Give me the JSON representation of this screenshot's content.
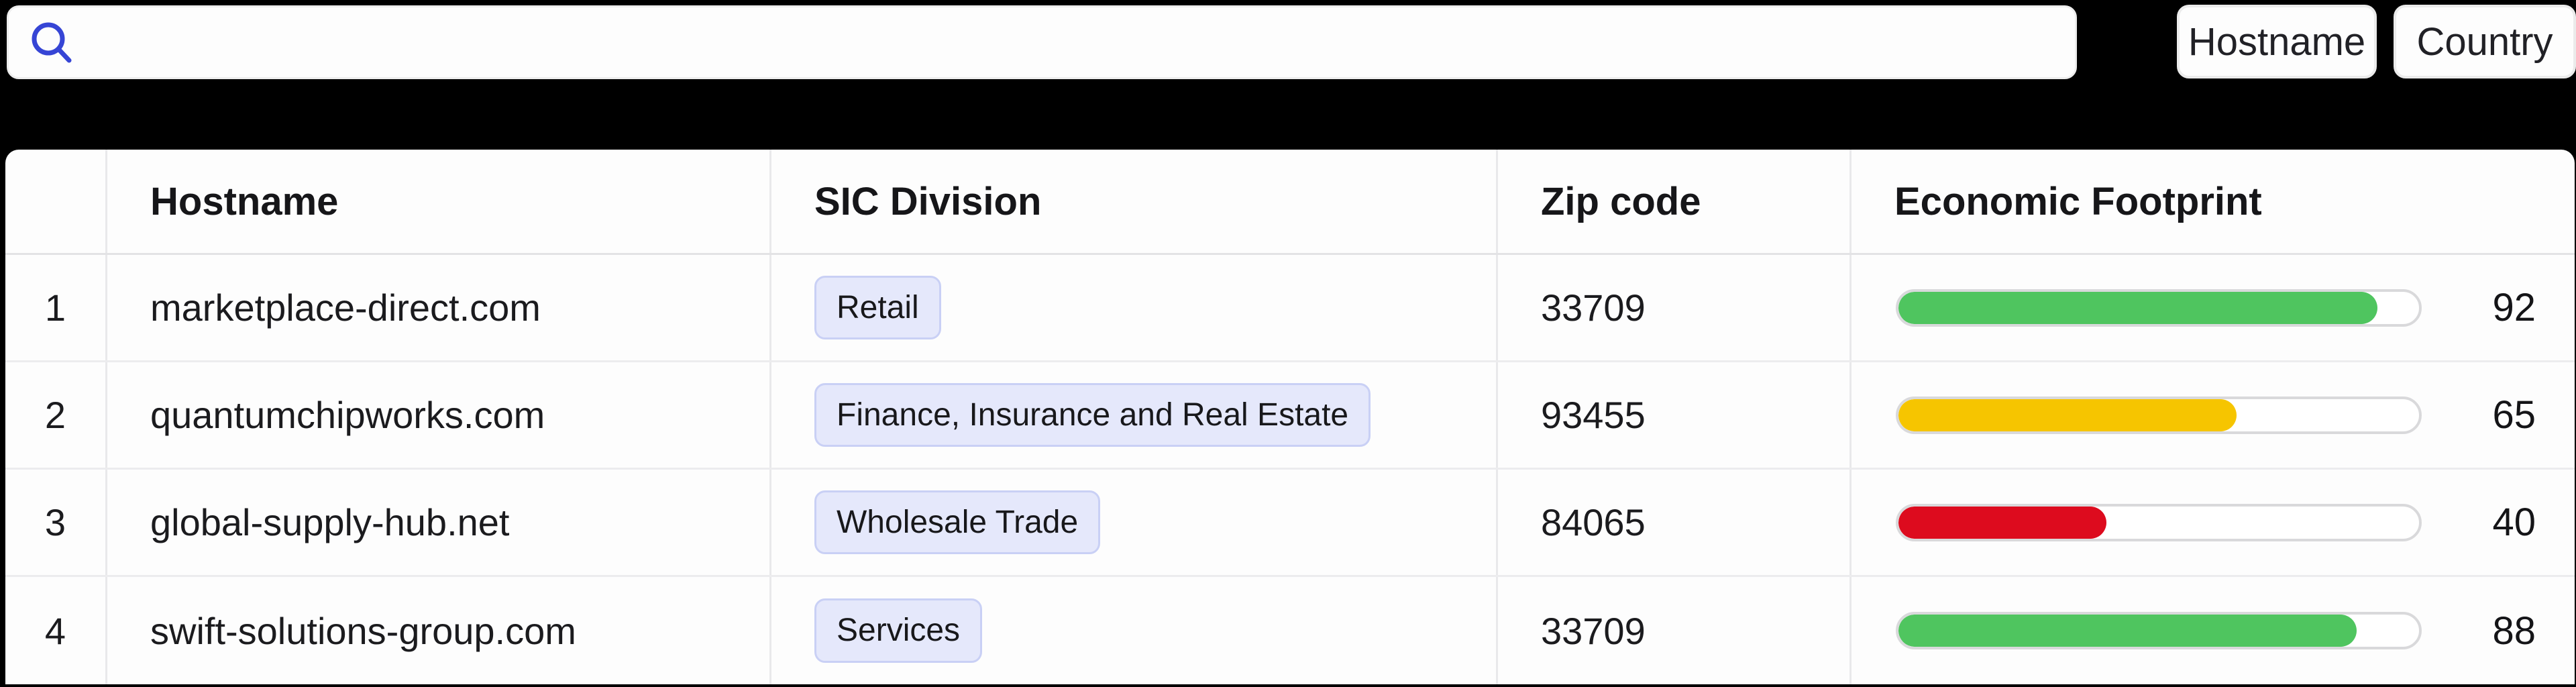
{
  "page": {
    "background": "#000000"
  },
  "toolbar": {
    "search": {
      "value": "",
      "placeholder": "",
      "icon_color": "#3645d5"
    },
    "buttons": {
      "hostname": "Hostname",
      "country": "Country"
    }
  },
  "colors": {
    "chip_bg": "#e5e8fb",
    "chip_border": "#c9d0f5",
    "bar_green": "#4fc55f",
    "bar_yellow": "#f6c500",
    "bar_red": "#dd0b1e",
    "bar_track": "#ffffff"
  },
  "table": {
    "headers": {
      "index": "",
      "hostname": "Hostname",
      "sic_division": "SIC Division",
      "zip": "Zip code",
      "footprint": "Economic Footprint"
    },
    "rows": [
      {
        "index": "1",
        "hostname": "marketplace-direct.com",
        "sic_division": "Retail",
        "zip": "33709",
        "footprint": 92,
        "bar_color": "#4fc55f"
      },
      {
        "index": "2",
        "hostname": "quantumchipworks.com",
        "sic_division": "Finance, Insurance and Real Estate",
        "zip": "93455",
        "footprint": 65,
        "bar_color": "#f6c500"
      },
      {
        "index": "3",
        "hostname": "global-supply-hub.net",
        "sic_division": "Wholesale Trade",
        "zip": "84065",
        "footprint": 40,
        "bar_color": "#dd0b1e"
      },
      {
        "index": "4",
        "hostname": "swift-solutions-group.com",
        "sic_division": "Services",
        "zip": "33709",
        "footprint": 88,
        "bar_color": "#4fc55f"
      }
    ]
  }
}
